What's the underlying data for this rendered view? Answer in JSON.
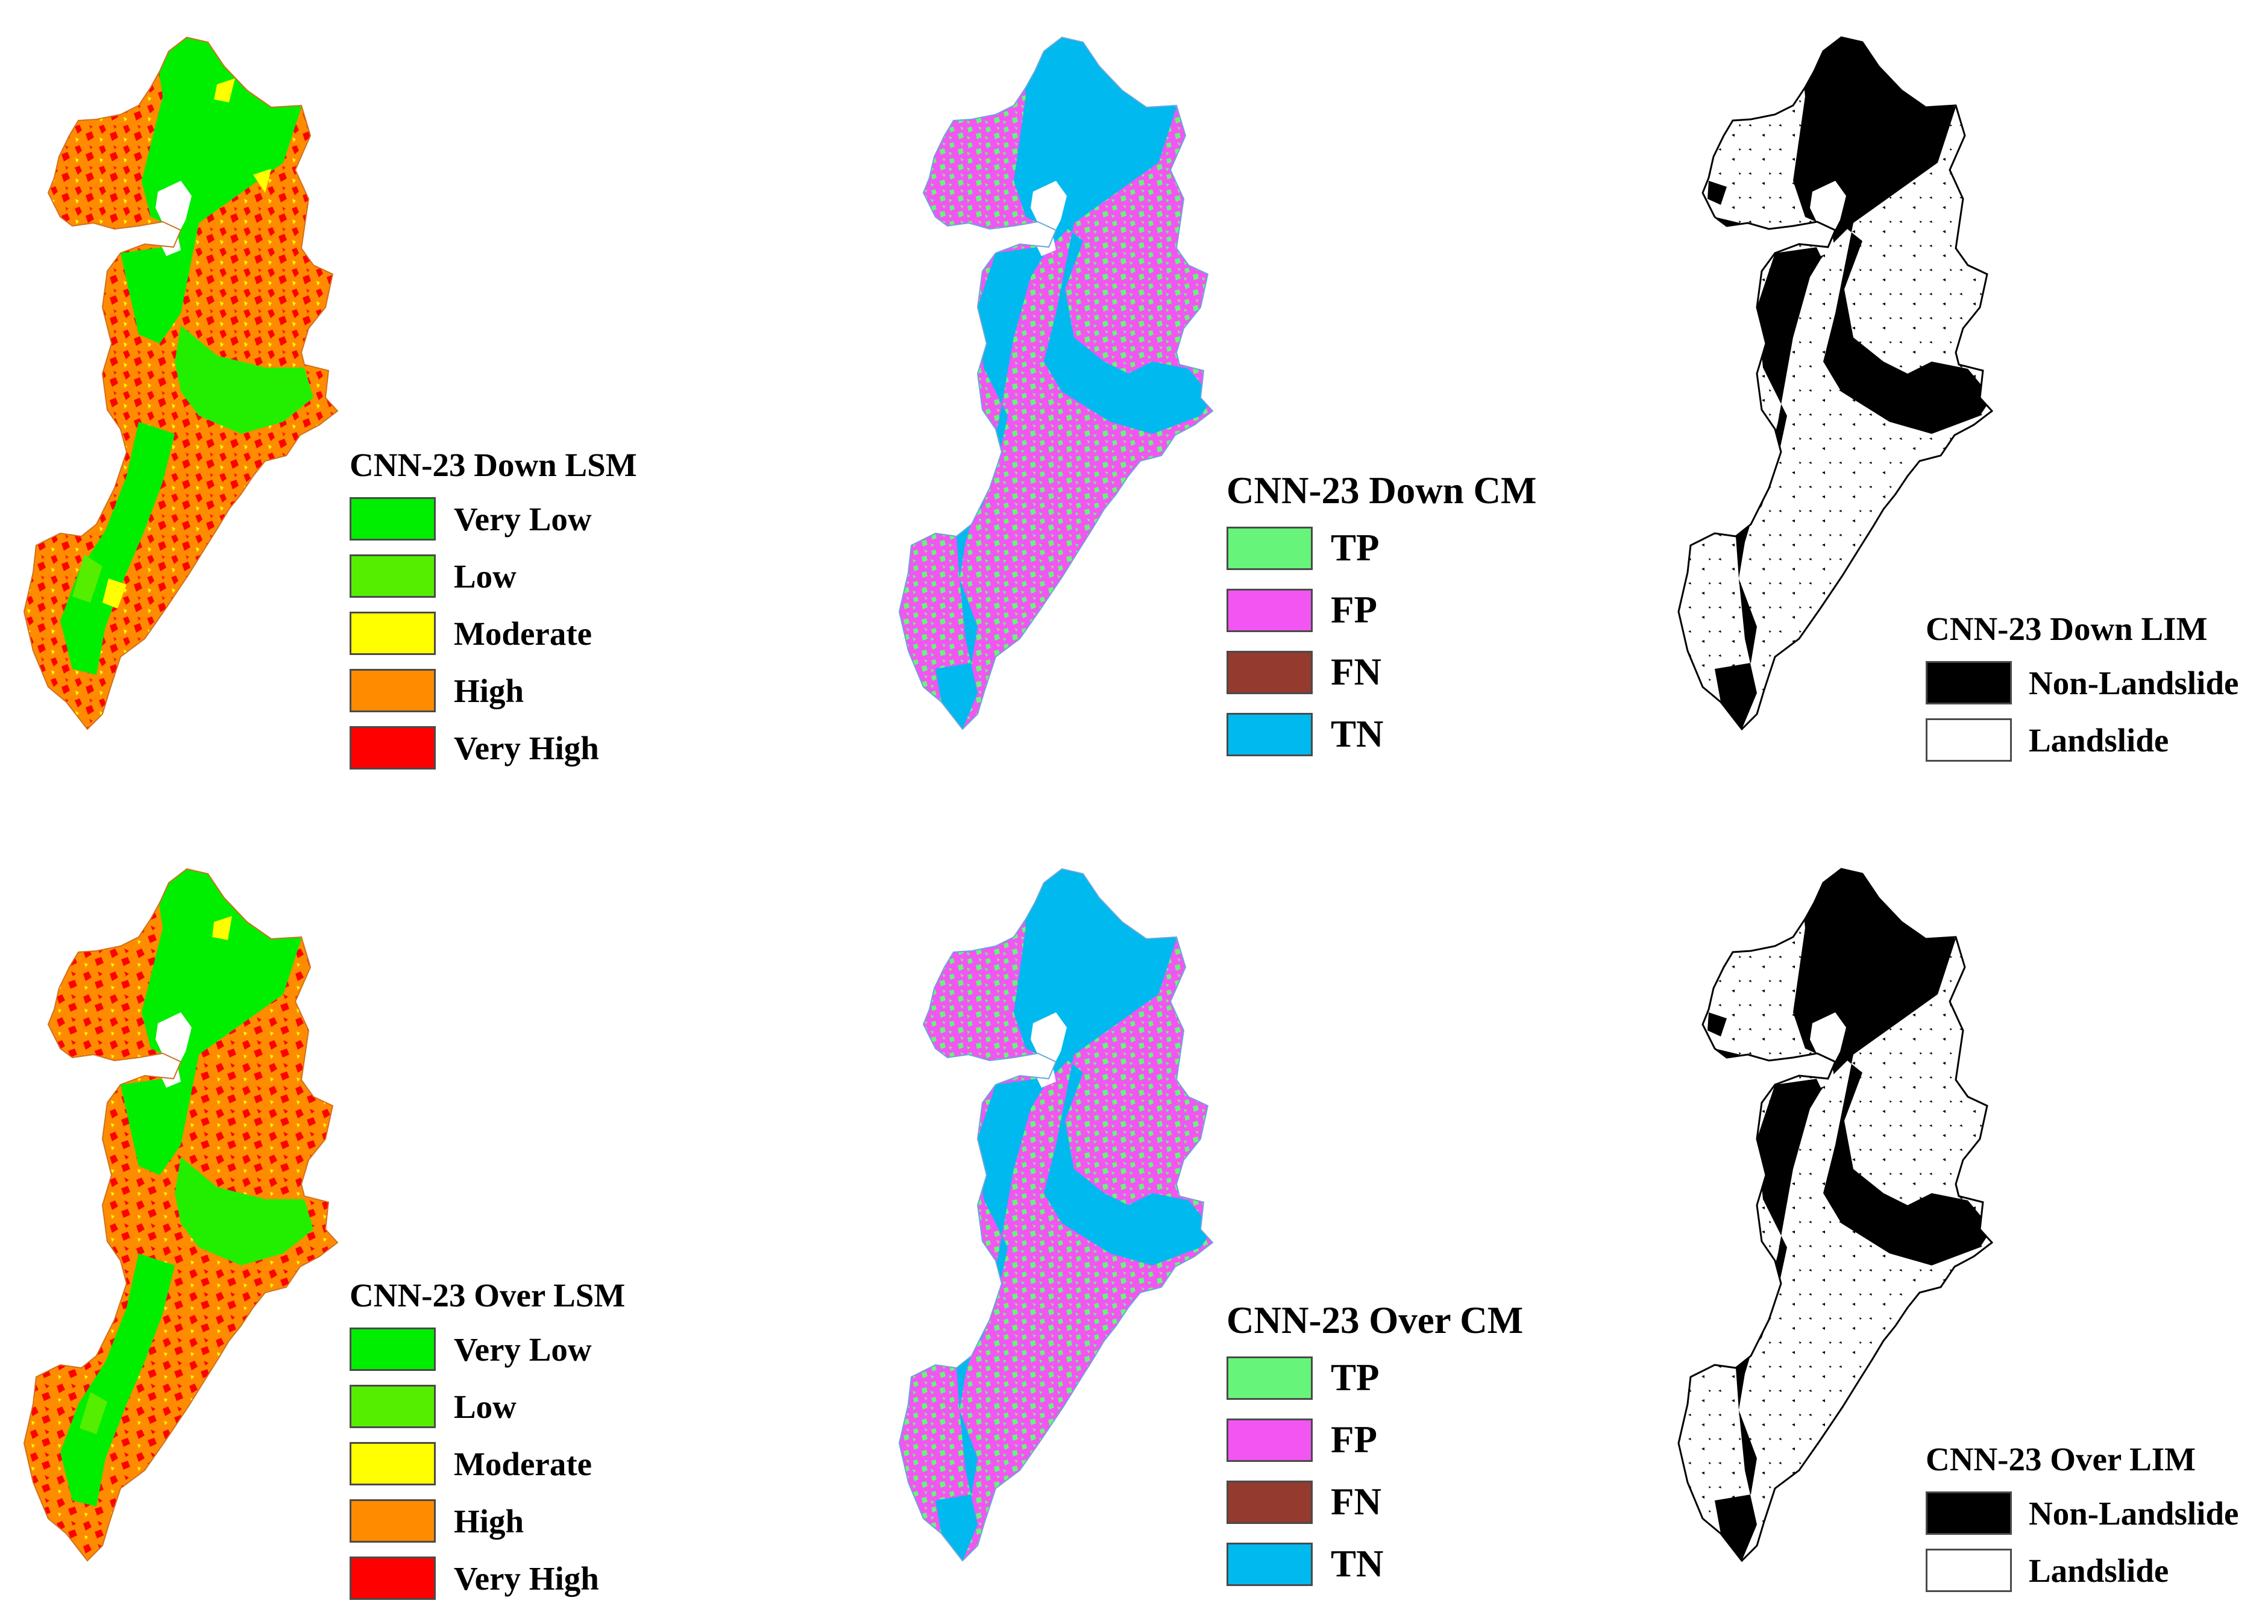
{
  "panels": [
    {
      "type": "lsm",
      "title": "CNN-23 Down LSM",
      "items": [
        {
          "label": "Very Low",
          "color": "#00ee00"
        },
        {
          "label": "Low",
          "color": "#55ee00"
        },
        {
          "label": "Moderate",
          "color": "#ffff00"
        },
        {
          "label": "High",
          "color": "#ff8c00"
        },
        {
          "label": "Very High",
          "color": "#ff0000"
        }
      ]
    },
    {
      "type": "cm",
      "title": "CNN-23 Down CM",
      "items": [
        {
          "label": "TP",
          "color": "#66f57a"
        },
        {
          "label": "FP",
          "color": "#f255f2"
        },
        {
          "label": "FN",
          "color": "#943a2e"
        },
        {
          "label": "TN",
          "color": "#00b9ee"
        }
      ]
    },
    {
      "type": "lim",
      "title": "CNN-23 Down LIM",
      "items": [
        {
          "label": "Non-Landslide",
          "color": "#000000"
        },
        {
          "label": "Landslide",
          "color": "#ffffff"
        }
      ]
    },
    {
      "type": "lsm",
      "title": "CNN-23 Over LSM",
      "items": [
        {
          "label": "Very Low",
          "color": "#00ee00"
        },
        {
          "label": "Low",
          "color": "#55ee00"
        },
        {
          "label": "Moderate",
          "color": "#ffff00"
        },
        {
          "label": "High",
          "color": "#ff8c00"
        },
        {
          "label": "Very High",
          "color": "#ff0000"
        }
      ]
    },
    {
      "type": "cm",
      "title": "CNN-23 Over CM",
      "items": [
        {
          "label": "TP",
          "color": "#66f57a"
        },
        {
          "label": "FP",
          "color": "#f255f2"
        },
        {
          "label": "FN",
          "color": "#943a2e"
        },
        {
          "label": "TN",
          "color": "#00b9ee"
        }
      ]
    },
    {
      "type": "lim",
      "title": "CNN-23 Over LIM",
      "items": [
        {
          "label": "Non-Landslide",
          "color": "#000000"
        },
        {
          "label": "Landslide",
          "color": "#ffffff"
        }
      ]
    }
  ]
}
